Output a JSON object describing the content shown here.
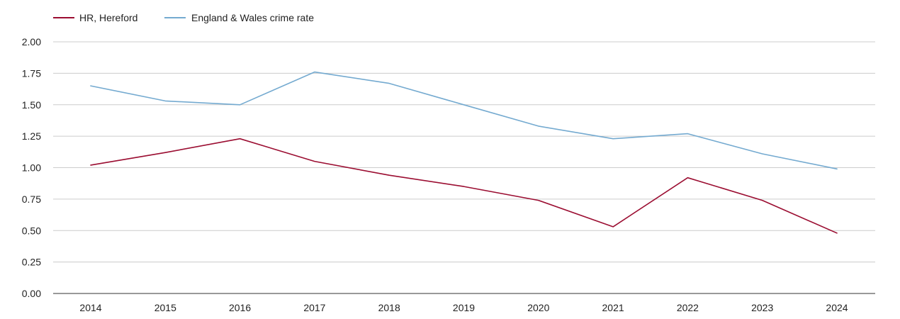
{
  "chart_data": {
    "type": "line",
    "title": "",
    "xlabel": "",
    "ylabel": "",
    "categories": [
      "2014",
      "2015",
      "2016",
      "2017",
      "2018",
      "2019",
      "2020",
      "2021",
      "2022",
      "2023",
      "2024"
    ],
    "ylim": [
      0,
      2
    ],
    "yticks": [
      "0.00",
      "0.25",
      "0.50",
      "0.75",
      "1.00",
      "1.25",
      "1.50",
      "1.75",
      "2.00"
    ],
    "grid": true,
    "legend_position": "top-left",
    "series": [
      {
        "name": "HR, Hereford",
        "color": "#9b0d31",
        "values": [
          1.02,
          1.12,
          1.23,
          1.05,
          0.94,
          0.85,
          0.74,
          0.53,
          0.92,
          0.74,
          0.48
        ]
      },
      {
        "name": "England & Wales crime rate",
        "color": "#74aad0",
        "values": [
          1.65,
          1.53,
          1.5,
          1.76,
          1.67,
          1.5,
          1.33,
          1.23,
          1.27,
          1.11,
          0.99
        ]
      }
    ]
  }
}
